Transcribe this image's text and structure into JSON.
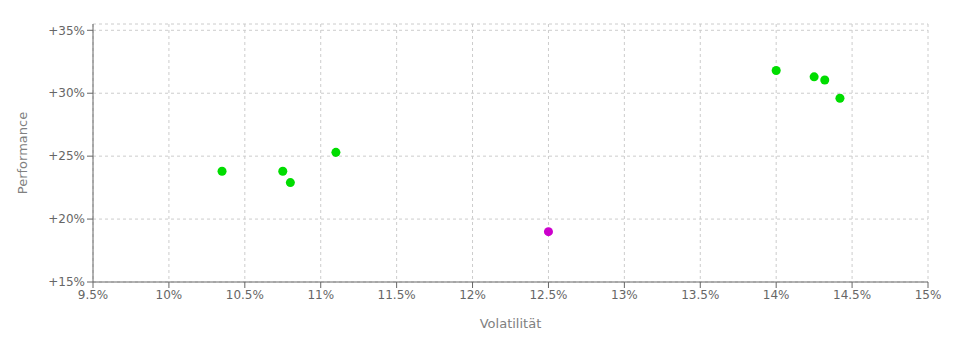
{
  "chart_data": {
    "type": "scatter",
    "xlabel": "Volatilität",
    "ylabel": "Performance",
    "xlim": [
      9.5,
      15.0
    ],
    "ylim": [
      15.0,
      35.5
    ],
    "xticks": [
      {
        "value": 9.5,
        "label": "9.5%"
      },
      {
        "value": 10.0,
        "label": "10%"
      },
      {
        "value": 10.5,
        "label": "10.5%"
      },
      {
        "value": 11.0,
        "label": "11%"
      },
      {
        "value": 11.5,
        "label": "11.5%"
      },
      {
        "value": 12.0,
        "label": "12%"
      },
      {
        "value": 12.5,
        "label": "12.5%"
      },
      {
        "value": 13.0,
        "label": "13%"
      },
      {
        "value": 13.5,
        "label": "13.5%"
      },
      {
        "value": 14.0,
        "label": "14%"
      },
      {
        "value": 14.5,
        "label": "14.5%"
      },
      {
        "value": 15.0,
        "label": "15%"
      }
    ],
    "yticks": [
      {
        "value": 15.0,
        "label": "+15%"
      },
      {
        "value": 20.0,
        "label": "+20%"
      },
      {
        "value": 25.0,
        "label": "+25%"
      },
      {
        "value": 30.0,
        "label": "+30%"
      },
      {
        "value": 35.0,
        "label": "+35%"
      }
    ],
    "grid": true,
    "series": [
      {
        "color": "#00dd00",
        "marker": "circle",
        "x": [
          10.35,
          10.75,
          10.8,
          11.1,
          14.0,
          14.25,
          14.32,
          14.42
        ],
        "values": [
          23.8,
          23.8,
          22.9,
          25.3,
          31.8,
          31.3,
          31.05,
          29.6
        ]
      },
      {
        "color": "#cc00cc",
        "marker": "circle",
        "x": [
          12.5
        ],
        "values": [
          19.0
        ]
      }
    ]
  }
}
